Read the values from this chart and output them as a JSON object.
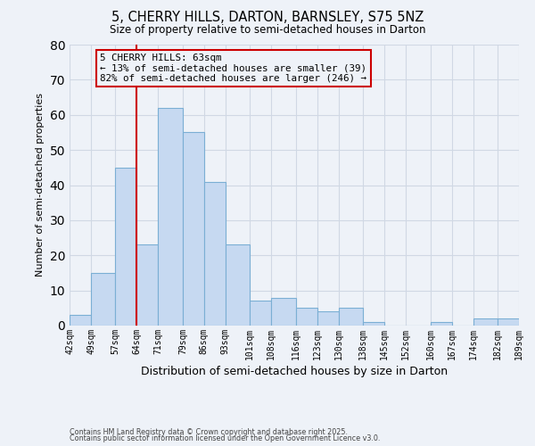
{
  "title": "5, CHERRY HILLS, DARTON, BARNSLEY, S75 5NZ",
  "subtitle": "Size of property relative to semi-detached houses in Darton",
  "xlabel": "Distribution of semi-detached houses by size in Darton",
  "ylabel": "Number of semi-detached properties",
  "bins": [
    42,
    49,
    57,
    64,
    71,
    79,
    86,
    93,
    101,
    108,
    116,
    123,
    130,
    138,
    145,
    152,
    160,
    167,
    174,
    182,
    189
  ],
  "counts": [
    3,
    15,
    45,
    23,
    62,
    55,
    41,
    23,
    7,
    8,
    5,
    4,
    5,
    1,
    0,
    0,
    1,
    0,
    2,
    2
  ],
  "bin_labels": [
    "42sqm",
    "49sqm",
    "57sqm",
    "64sqm",
    "71sqm",
    "79sqm",
    "86sqm",
    "93sqm",
    "101sqm",
    "108sqm",
    "116sqm",
    "123sqm",
    "130sqm",
    "138sqm",
    "145sqm",
    "152sqm",
    "160sqm",
    "167sqm",
    "174sqm",
    "182sqm",
    "189sqm"
  ],
  "property_line_x": 64,
  "bar_color": "#c6d9f1",
  "bar_edge_color": "#7bafd4",
  "bar_linewidth": 0.8,
  "vline_color": "#cc0000",
  "vline_linewidth": 1.5,
  "grid_color": "#d0d8e4",
  "background_color": "#eef2f8",
  "ylim": [
    0,
    80
  ],
  "yticks": [
    0,
    10,
    20,
    30,
    40,
    50,
    60,
    70,
    80
  ],
  "annotation_title": "5 CHERRY HILLS: 63sqm",
  "annotation_line1": "← 13% of semi-detached houses are smaller (39)",
  "annotation_line2": "82% of semi-detached houses are larger (246) →",
  "annotation_box_edge": "#cc0000",
  "footnote1": "Contains HM Land Registry data © Crown copyright and database right 2025.",
  "footnote2": "Contains public sector information licensed under the Open Government Licence v3.0.",
  "title_fontsize": 10.5,
  "subtitle_fontsize": 8.5
}
